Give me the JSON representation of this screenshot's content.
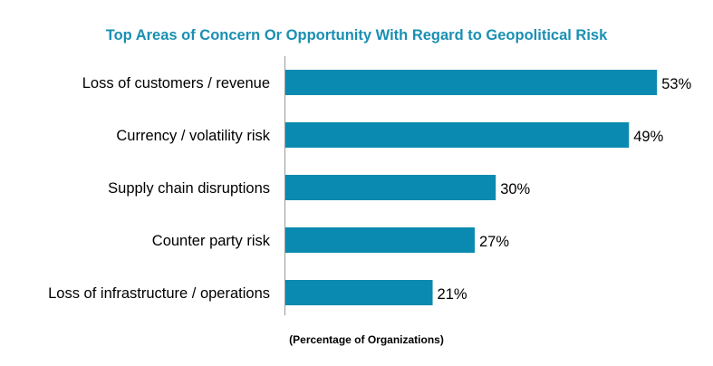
{
  "chart_data": {
    "type": "bar",
    "orientation": "horizontal",
    "title": "Top Areas of Concern Or Opportunity With Regard to Geopolitical Risk",
    "xlabel": "(Percentage of Organizations)",
    "ylabel": "",
    "categories": [
      "Loss of customers / revenue",
      "Currency / volatility risk",
      "Supply chain disruptions",
      "Counter party risk",
      "Loss of infrastructure / operations"
    ],
    "values": [
      53,
      49,
      30,
      27,
      21
    ],
    "data_labels": [
      "53%",
      "49%",
      "30%",
      "27%",
      "21%"
    ],
    "unit": "%",
    "xlim": [
      0,
      60
    ],
    "grid": false,
    "bar_color": "#0a8ab0",
    "title_color": "#1a8fb3"
  }
}
